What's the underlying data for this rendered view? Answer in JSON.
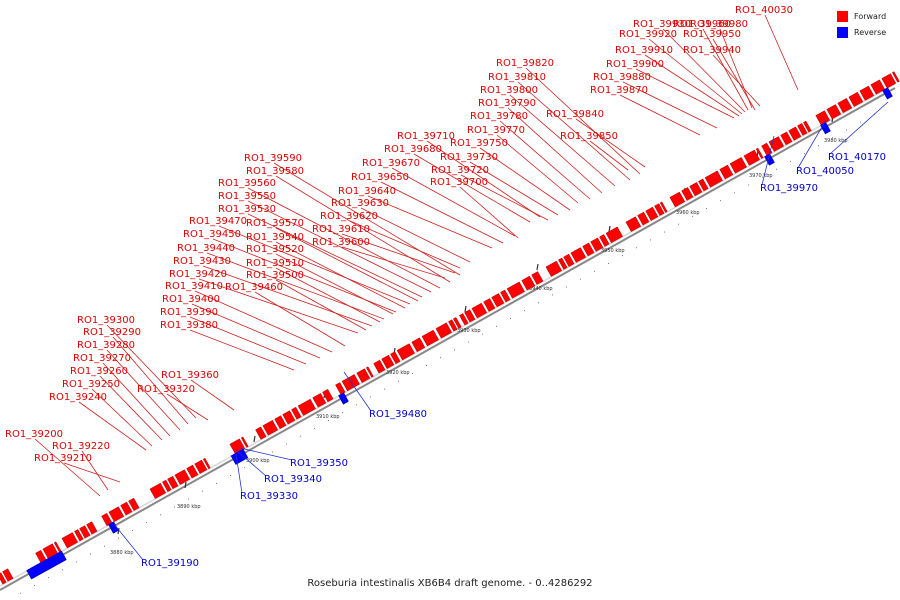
{
  "caption": "Roseburia intestinalis XB6B4 draft genome. - 0..4286292",
  "legend": [
    {
      "label": "Forward",
      "color": "#ff0000"
    },
    {
      "label": "Reverse",
      "color": "#0000ff"
    }
  ],
  "colors": {
    "forward": "#ff0000",
    "reverse": "#0000ff",
    "leader": "#cc2222",
    "backbone": "#888888"
  },
  "ticks": [
    "3880 kbp",
    "3890 kbp",
    "3900 kbp",
    "3910 kbp",
    "3920 kbp",
    "3930 kbp",
    "3940 kbp",
    "3950 kbp",
    "3960 kbp",
    "3970 kbp",
    "3980 kbp"
  ],
  "forward_genes": [
    "RO1_40030",
    "RO1_39960",
    "RO1_39980",
    "RO1_39930",
    "RO1_39920",
    "RO1_39950",
    "RO1_39910",
    "RO1_39940",
    "RO1_39900",
    "RO1_39880",
    "RO1_39870",
    "RO1_39820",
    "RO1_39810",
    "RO1_39800",
    "RO1_39790",
    "RO1_39840",
    "RO1_39780",
    "RO1_39770",
    "RO1_39850",
    "RO1_39710",
    "RO1_39750",
    "RO1_39680",
    "RO1_39730",
    "RO1_39670",
    "RO1_39720",
    "RO1_39650",
    "RO1_39700",
    "RO1_39640",
    "RO1_39590",
    "RO1_39580",
    "RO1_39560",
    "RO1_39630",
    "RO1_39550",
    "RO1_39620",
    "RO1_39530",
    "RO1_39610",
    "RO1_39470",
    "RO1_39570",
    "RO1_39600",
    "RO1_39450",
    "RO1_39540",
    "RO1_39440",
    "RO1_39520",
    "RO1_39430",
    "RO1_39510",
    "RO1_39420",
    "RO1_39500",
    "RO1_39410",
    "RO1_39460",
    "RO1_39400",
    "RO1_39390",
    "RO1_39380",
    "RO1_39300",
    "RO1_39290",
    "RO1_39280",
    "RO1_39270",
    "RO1_39260",
    "RO1_39360",
    "RO1_39250",
    "RO1_39320",
    "RO1_39240",
    "RO1_39200",
    "RO1_39220",
    "RO1_39210"
  ],
  "reverse_genes": [
    "RO1_40170",
    "RO1_40050",
    "RO1_39970",
    "RO1_39480",
    "RO1_39350",
    "RO1_39340",
    "RO1_39330",
    "RO1_39190"
  ]
}
